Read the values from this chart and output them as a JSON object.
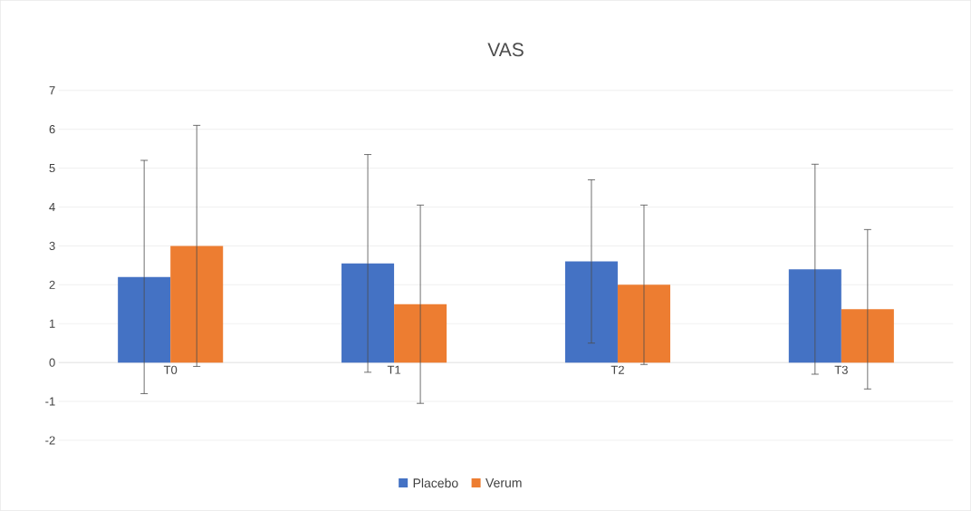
{
  "chart_data": {
    "type": "bar",
    "title": "VAS",
    "categories": [
      "T0",
      "T1",
      "T2",
      "T3"
    ],
    "series": [
      {
        "name": "Placebo",
        "color": "#4472c4",
        "values": [
          2.2,
          2.55,
          2.6,
          2.4
        ],
        "errors": [
          3.0,
          2.8,
          2.1,
          2.7
        ]
      },
      {
        "name": "Verum",
        "color": "#ed7d31",
        "values": [
          3.0,
          1.5,
          2.0,
          1.37
        ],
        "errors": [
          3.1,
          2.55,
          2.05,
          2.05
        ]
      }
    ],
    "ylim": [
      -2,
      7
    ],
    "yticks": [
      -2,
      -1,
      0,
      1,
      2,
      3,
      4,
      5,
      6,
      7
    ],
    "grid": "y",
    "legend": "bottom"
  }
}
